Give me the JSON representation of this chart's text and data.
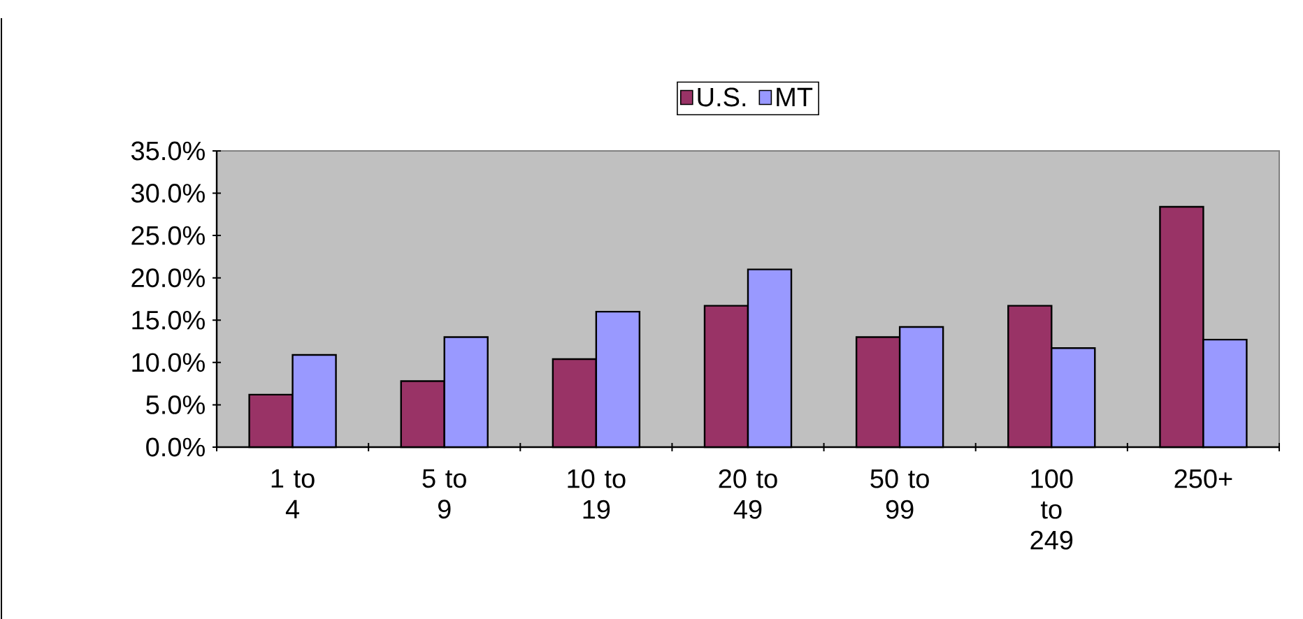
{
  "chart_data": {
    "type": "bar",
    "categories": [
      "1 to 4",
      "5 to 9",
      "10 to 19",
      "20 to 49",
      "50 to 99",
      "100 to 249",
      "250+"
    ],
    "series": [
      {
        "name": "U.S.",
        "color": "#993366",
        "values": [
          6.2,
          7.8,
          10.4,
          16.7,
          13.0,
          16.7,
          28.4
        ]
      },
      {
        "name": "MT",
        "color": "#9999ff",
        "values": [
          10.9,
          13.0,
          16.0,
          21.0,
          14.2,
          11.7,
          12.7
        ]
      }
    ],
    "ylim": [
      0,
      35
    ],
    "yticks": [
      {
        "value": 0,
        "label": "0.0%"
      },
      {
        "value": 5,
        "label": "5.0%"
      },
      {
        "value": 10,
        "label": "10.0%"
      },
      {
        "value": 15,
        "label": "15.0%"
      },
      {
        "value": 20,
        "label": "20.0%"
      },
      {
        "value": 25,
        "label": "25.0%"
      },
      {
        "value": 30,
        "label": "30.0%"
      },
      {
        "value": 35,
        "label": "35.0%"
      }
    ],
    "grid": false,
    "legend": "top"
  }
}
